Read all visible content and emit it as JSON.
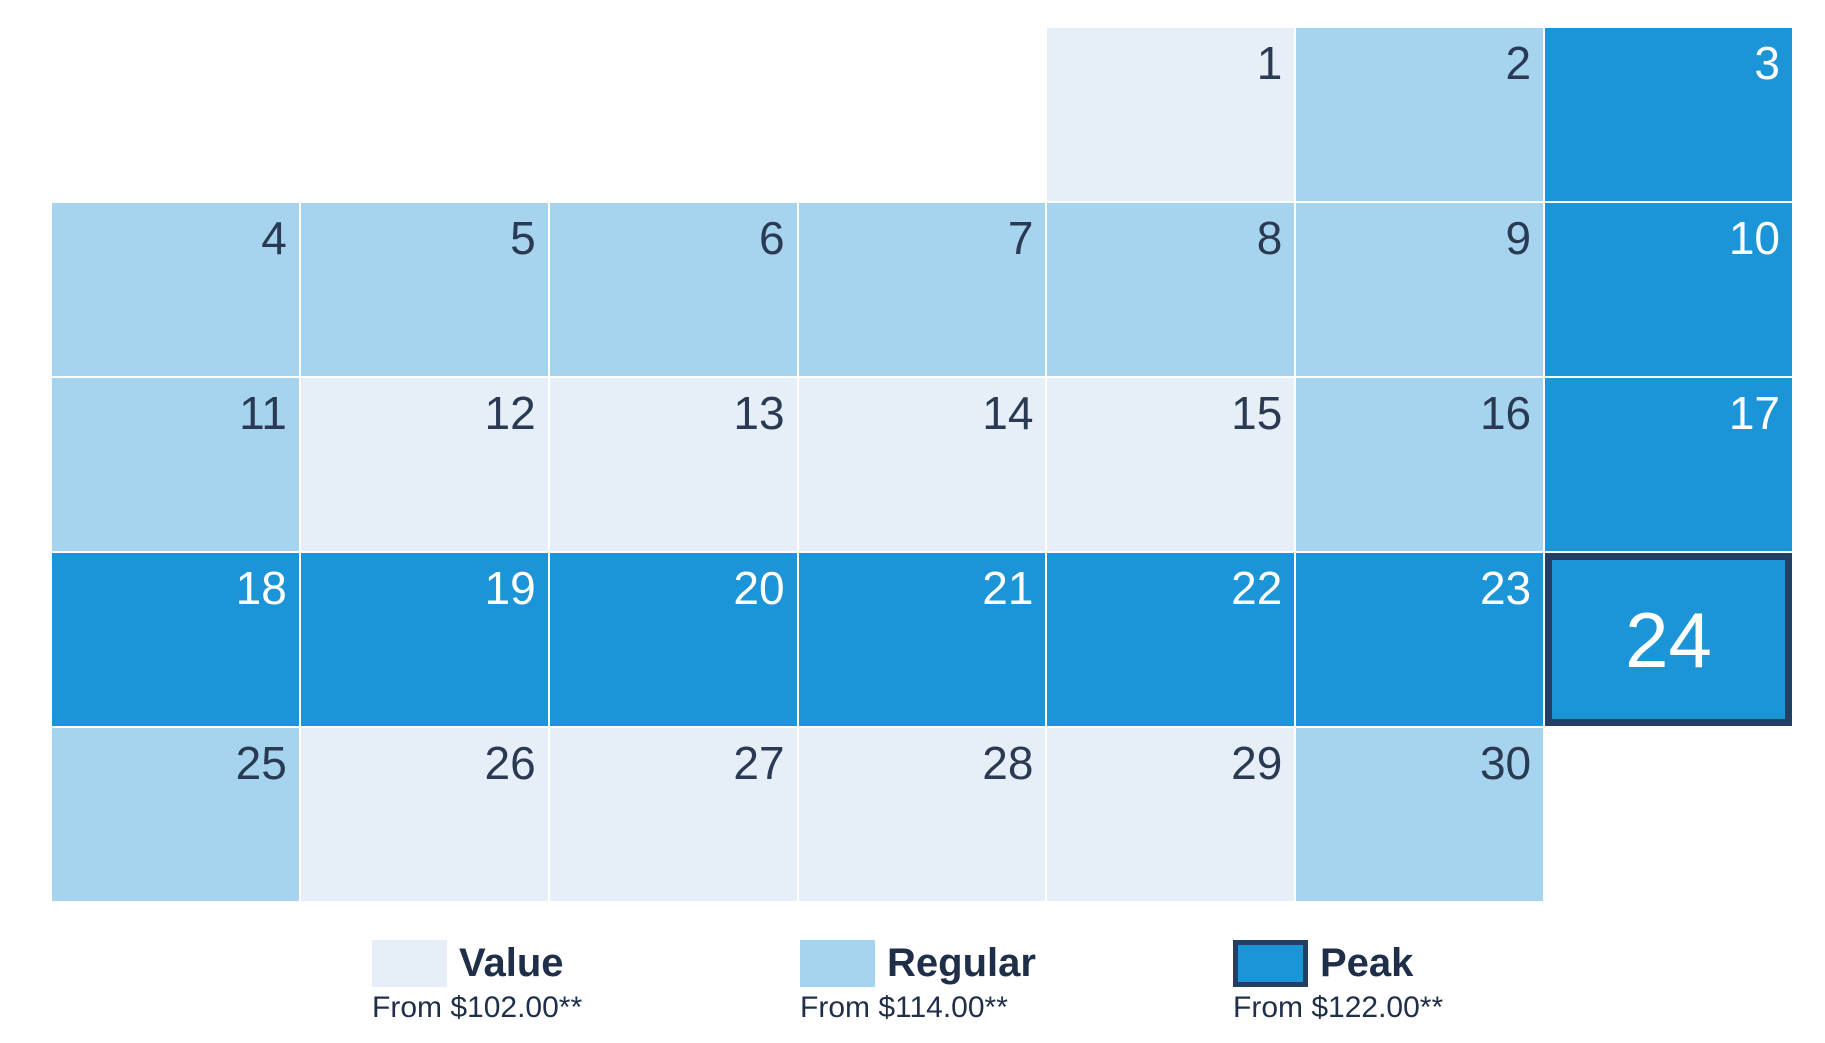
{
  "calendar": {
    "leading_blanks": 4,
    "selected_day": "24",
    "days": [
      {
        "n": "1",
        "tier": "value"
      },
      {
        "n": "2",
        "tier": "regular"
      },
      {
        "n": "3",
        "tier": "peak"
      },
      {
        "n": "4",
        "tier": "regular"
      },
      {
        "n": "5",
        "tier": "regular"
      },
      {
        "n": "6",
        "tier": "regular"
      },
      {
        "n": "7",
        "tier": "regular"
      },
      {
        "n": "8",
        "tier": "regular"
      },
      {
        "n": "9",
        "tier": "regular"
      },
      {
        "n": "10",
        "tier": "peak"
      },
      {
        "n": "11",
        "tier": "regular"
      },
      {
        "n": "12",
        "tier": "value"
      },
      {
        "n": "13",
        "tier": "value"
      },
      {
        "n": "14",
        "tier": "value"
      },
      {
        "n": "15",
        "tier": "value"
      },
      {
        "n": "16",
        "tier": "regular"
      },
      {
        "n": "17",
        "tier": "peak"
      },
      {
        "n": "18",
        "tier": "peak"
      },
      {
        "n": "19",
        "tier": "peak"
      },
      {
        "n": "20",
        "tier": "peak"
      },
      {
        "n": "21",
        "tier": "peak"
      },
      {
        "n": "22",
        "tier": "peak"
      },
      {
        "n": "23",
        "tier": "peak"
      },
      {
        "n": "24",
        "tier": "peak"
      },
      {
        "n": "25",
        "tier": "regular"
      },
      {
        "n": "26",
        "tier": "value"
      },
      {
        "n": "27",
        "tier": "value"
      },
      {
        "n": "28",
        "tier": "value"
      },
      {
        "n": "29",
        "tier": "value"
      },
      {
        "n": "30",
        "tier": "regular"
      }
    ]
  },
  "legend": {
    "value": {
      "label": "Value",
      "price": "From $102.00**",
      "color": "#e6eef8"
    },
    "regular": {
      "label": "Regular",
      "price": "From $114.00**",
      "color": "#a6d4ee"
    },
    "peak": {
      "label": "Peak",
      "price": "From $122.00**",
      "color": "#1b95d8"
    }
  }
}
